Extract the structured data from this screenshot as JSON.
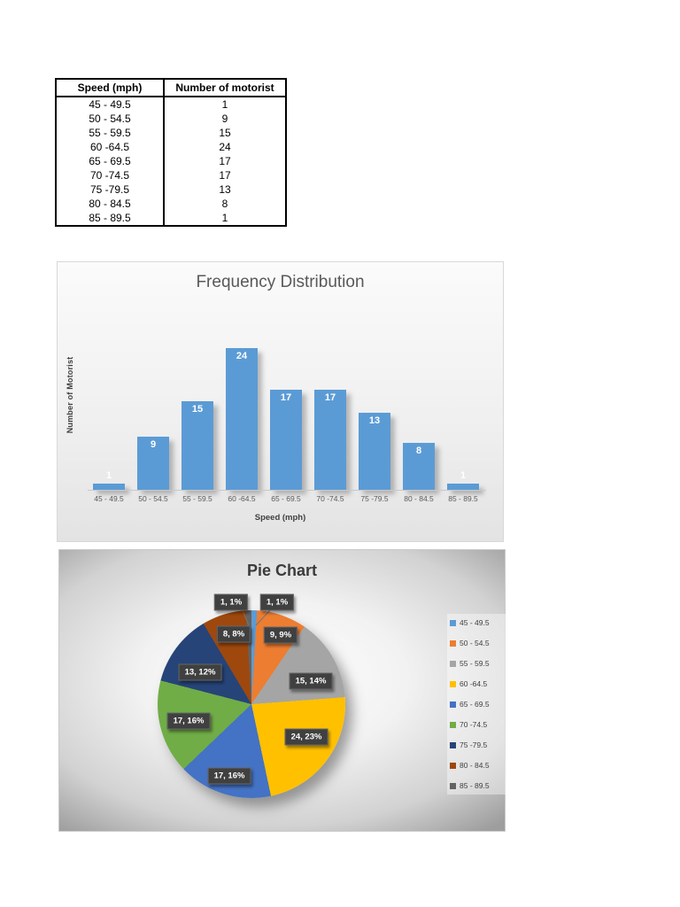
{
  "table": {
    "headers": [
      "Speed (mph)",
      "Number of motorist"
    ],
    "rows": [
      [
        "45 - 49.5",
        "1"
      ],
      [
        "50 - 54.5",
        "9"
      ],
      [
        "55 - 59.5",
        "15"
      ],
      [
        "60 -64.5",
        "24"
      ],
      [
        "65 - 69.5",
        "17"
      ],
      [
        "70 -74.5",
        "17"
      ],
      [
        "75 -79.5",
        "13"
      ],
      [
        "80 - 84.5",
        "8"
      ],
      [
        "85 - 89.5",
        "1"
      ]
    ]
  },
  "chart_data": [
    {
      "type": "bar",
      "title": "Frequency Distribution",
      "categories": [
        "45 - 49.5",
        "50 - 54.5",
        "55 - 59.5",
        "60 -64.5",
        "65 - 69.5",
        "70 -74.5",
        "75 -79.5",
        "80 - 84.5",
        "85 - 89.5"
      ],
      "values": [
        1,
        9,
        15,
        24,
        17,
        17,
        13,
        8,
        1
      ],
      "xlabel": "Speed (mph)",
      "ylabel": "Number of Motorist",
      "ylim": [
        0,
        24
      ],
      "bar_color": "#5B9BD5",
      "data_labels": true,
      "grid": false,
      "legend_position": "none"
    },
    {
      "type": "pie",
      "title": "Pie Chart",
      "categories": [
        "45 - 49.5",
        "50 - 54.5",
        "55 - 59.5",
        "60 -64.5",
        "65 - 69.5",
        "70 -74.5",
        "75 -79.5",
        "80 - 84.5",
        "85 - 89.5"
      ],
      "values": [
        1,
        9,
        15,
        24,
        17,
        17,
        13,
        8,
        1
      ],
      "data_labels": [
        "1, 1%",
        "9, 9%",
        "15, 14%",
        "24, 23%",
        "17, 16%",
        "17, 16%",
        "13, 12%",
        "8, 8%",
        "1, 1%"
      ],
      "colors": [
        "#5B9BD5",
        "#ED7D31",
        "#A5A5A5",
        "#FFC000",
        "#4472C4",
        "#70AD47",
        "#264478",
        "#9E480E",
        "#636363"
      ],
      "legend_position": "right"
    }
  ]
}
